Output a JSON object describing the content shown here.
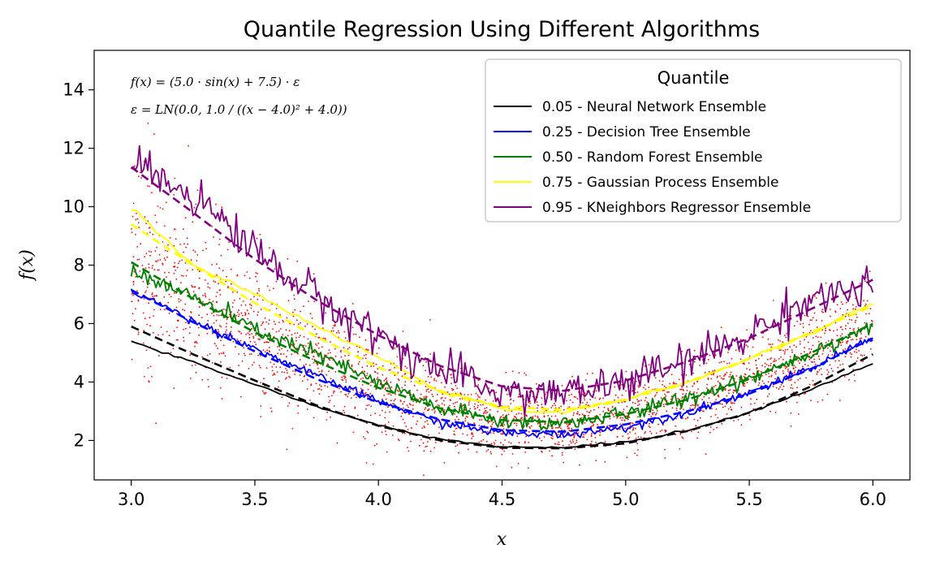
{
  "chart_data": {
    "type": "line",
    "title": "Quantile Regression Using Different Algorithms",
    "xlabel": "x",
    "ylabel": "f(x)",
    "xlim": [
      2.85,
      6.15
    ],
    "ylim": [
      0.65,
      15.35
    ],
    "xticks": [
      3.0,
      3.5,
      4.0,
      4.5,
      5.0,
      5.5,
      6.0
    ],
    "xtick_labels": [
      "3.0",
      "3.5",
      "4.0",
      "4.5",
      "5.0",
      "5.5",
      "6.0"
    ],
    "yticks": [
      2,
      4,
      6,
      8,
      10,
      12,
      14
    ],
    "ytick_labels": [
      "2",
      "4",
      "6",
      "8",
      "10",
      "12",
      "14"
    ],
    "grid": false,
    "legend": {
      "title": "Quantile",
      "placement": "top-right"
    },
    "annotations": [
      "f(x) = (5.0 · sin(x) + 7.5) · ε",
      "ε = LN(0.0, 1.0 / ((x − 4.0)² + 4.0))"
    ],
    "scatter_color": "#ff0000",
    "series": [
      {
        "name": "0.05 - Neural Network Ensemble",
        "color": "#000000",
        "quantile": 0.05,
        "x": [
          3.0,
          3.25,
          3.5,
          3.75,
          4.0,
          4.25,
          4.5,
          4.75,
          5.0,
          5.25,
          5.5,
          5.75,
          6.0
        ],
        "fitted": [
          5.37,
          4.68,
          3.92,
          3.15,
          2.52,
          2.05,
          1.78,
          1.75,
          1.95,
          2.35,
          2.95,
          3.75,
          4.62
        ],
        "true_quantile": [
          5.9,
          4.95,
          4.05,
          3.2,
          2.5,
          2.0,
          1.75,
          1.73,
          1.9,
          2.32,
          2.95,
          3.85,
          4.95
        ]
      },
      {
        "name": "0.25 - Decision Tree Ensemble",
        "color": "#0000ff",
        "quantile": 0.25,
        "x": [
          3.0,
          3.25,
          3.5,
          3.75,
          4.0,
          4.25,
          4.5,
          4.75,
          5.0,
          5.25,
          5.5,
          5.75,
          6.0
        ],
        "fitted": [
          7.15,
          6.1,
          5.15,
          4.2,
          3.35,
          2.6,
          2.25,
          2.2,
          2.45,
          2.95,
          3.65,
          4.45,
          5.55
        ],
        "true_quantile": [
          7.15,
          6.05,
          5.05,
          4.1,
          3.3,
          2.72,
          2.35,
          2.3,
          2.55,
          3.0,
          3.6,
          4.45,
          5.5
        ]
      },
      {
        "name": "0.50 - Random Forest Ensemble",
        "color": "#008000",
        "quantile": 0.5,
        "x": [
          3.0,
          3.25,
          3.5,
          3.75,
          4.0,
          4.25,
          4.5,
          4.75,
          5.0,
          5.25,
          5.5,
          5.75,
          6.0
        ],
        "fitted": [
          7.8,
          6.9,
          5.8,
          4.95,
          3.95,
          3.1,
          2.65,
          2.6,
          2.9,
          3.45,
          4.15,
          5.0,
          5.95
        ],
        "true_quantile": [
          8.1,
          6.85,
          5.7,
          4.7,
          3.8,
          3.1,
          2.7,
          2.62,
          2.9,
          3.4,
          4.1,
          5.0,
          6.0
        ]
      },
      {
        "name": "0.75 - Gaussian Process Ensemble",
        "color": "#ffff00",
        "quantile": 0.75,
        "x": [
          3.0,
          3.25,
          3.5,
          3.75,
          4.0,
          4.25,
          4.5,
          4.75,
          5.0,
          5.25,
          5.5,
          5.75,
          6.0
        ],
        "fitted": [
          9.95,
          8.0,
          7.0,
          5.9,
          4.85,
          3.7,
          3.05,
          2.95,
          3.4,
          4.0,
          4.8,
          5.65,
          6.7
        ],
        "true_quantile": [
          9.4,
          8.0,
          6.7,
          5.55,
          4.5,
          3.7,
          3.15,
          3.05,
          3.4,
          4.0,
          4.8,
          5.7,
          6.6
        ]
      },
      {
        "name": "0.95 - KNeighbors Regressor Ensemble",
        "color": "#800080",
        "quantile": 0.95,
        "x": [
          3.0,
          3.25,
          3.5,
          3.75,
          4.0,
          4.25,
          4.5,
          4.75,
          5.0,
          5.25,
          5.5,
          5.75,
          6.0
        ],
        "fitted": [
          11.55,
          10.4,
          8.55,
          6.9,
          5.6,
          4.35,
          3.65,
          3.6,
          4.0,
          4.7,
          5.6,
          6.9,
          7.2
        ],
        "true_quantile": [
          11.35,
          9.8,
          8.2,
          6.8,
          5.6,
          4.55,
          3.85,
          3.7,
          4.05,
          4.7,
          5.5,
          6.5,
          7.5
        ]
      }
    ]
  }
}
